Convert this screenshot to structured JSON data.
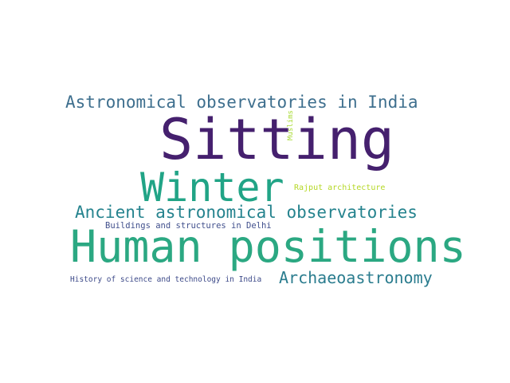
{
  "word_cloud": {
    "words": [
      {
        "text": "Sitting",
        "color": "#45206e"
      },
      {
        "text": "Human positions",
        "color": "#2ba882"
      },
      {
        "text": "Winter",
        "color": "#21a486"
      },
      {
        "text": "Astronomical observatories in India",
        "color": "#3e6f8e"
      },
      {
        "text": "Ancient astronomical observatories",
        "color": "#25838e"
      },
      {
        "text": "Archaeoastronomy",
        "color": "#2a7c8e"
      },
      {
        "text": "Buildings and structures in Delhi",
        "color": "#404f8c"
      },
      {
        "text": "History of science and technology in India",
        "color": "#3d4a89"
      },
      {
        "text": "Rajput architecture",
        "color": "#b5d826"
      },
      {
        "text": "Muslims",
        "color": "#a8db34"
      }
    ]
  }
}
